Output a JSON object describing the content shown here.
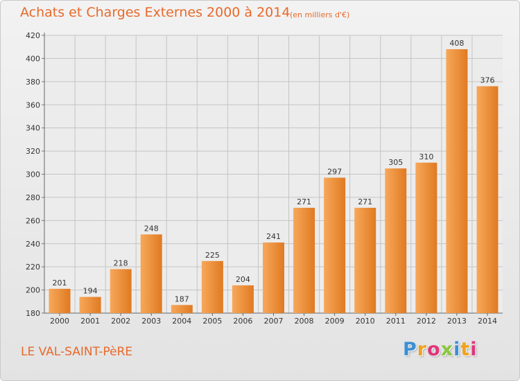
{
  "header": {
    "title": "Achats et Charges Externes 2000 à 2014",
    "unit": "(en milliers d'€)"
  },
  "footer": {
    "place": "LE VAL-SAINT-PèRE",
    "logo_letters": [
      "P",
      "r",
      "o",
      "x",
      "i",
      "t",
      "i"
    ],
    "logo_colors": [
      "#3b8fd6",
      "#f0a21a",
      "#e0357a",
      "#8cc63f",
      "#3b8fd6",
      "#f0a21a",
      "#e0357a"
    ]
  },
  "colors": {
    "bar_light": "#f7a85a",
    "bar_dark": "#e07a22",
    "title": "#e8692a"
  },
  "chart_data": {
    "type": "bar",
    "categories": [
      "2000",
      "2001",
      "2002",
      "2003",
      "2004",
      "2005",
      "2006",
      "2007",
      "2008",
      "2009",
      "2010",
      "2011",
      "2012",
      "2013",
      "2014"
    ],
    "values": [
      201,
      194,
      218,
      248,
      187,
      225,
      204,
      241,
      271,
      297,
      271,
      305,
      310,
      408,
      376
    ],
    "yticks": [
      180,
      200,
      220,
      240,
      260,
      280,
      300,
      320,
      340,
      360,
      380,
      400,
      420
    ],
    "ylim": [
      180,
      420
    ],
    "grid": true,
    "data_labels": true
  }
}
